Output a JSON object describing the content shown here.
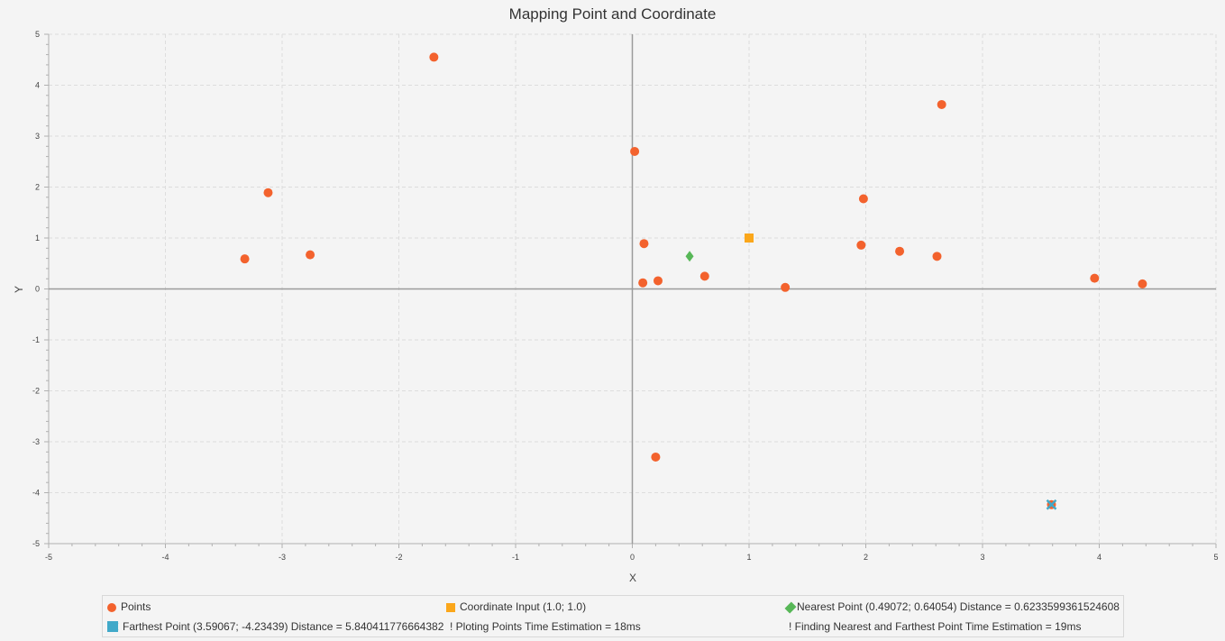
{
  "colors": {
    "points": "#f3622d",
    "coordinate_input": "#fba71b",
    "nearest": "#57b757",
    "farthest": "#41a9c9",
    "axis_zero": "#9a9a9a",
    "grid": "#dddddd"
  },
  "chart_data": {
    "type": "scatter",
    "title": "Mapping Point and Coordinate",
    "xlabel": "X",
    "ylabel": "Y",
    "xlim": [
      -5,
      5
    ],
    "ylim": [
      -5,
      5
    ],
    "x_ticks": [
      "-5",
      "-4",
      "-3",
      "-2",
      "-1",
      "0",
      "1",
      "2",
      "3",
      "4",
      "5"
    ],
    "y_ticks": [
      "-5",
      "-4",
      "-3",
      "-2",
      "-1",
      "0",
      "1",
      "2",
      "3",
      "4",
      "5"
    ],
    "grid": true,
    "legend_position": "bottom",
    "series": [
      {
        "name": "Points",
        "marker": "circle",
        "points": [
          [
            -1.7,
            4.55
          ],
          [
            -3.12,
            1.89
          ],
          [
            -3.32,
            0.59
          ],
          [
            -2.76,
            0.67
          ],
          [
            0.02,
            2.7
          ],
          [
            0.1,
            0.89
          ],
          [
            0.09,
            0.12
          ],
          [
            0.22,
            0.16
          ],
          [
            0.62,
            0.25
          ],
          [
            1.31,
            0.03
          ],
          [
            1.98,
            1.77
          ],
          [
            1.96,
            0.86
          ],
          [
            2.29,
            0.74
          ],
          [
            2.61,
            0.64
          ],
          [
            2.65,
            3.62
          ],
          [
            3.96,
            0.21
          ],
          [
            4.37,
            0.1
          ],
          [
            0.2,
            -3.3
          ],
          [
            3.59067,
            -4.23439
          ]
        ]
      },
      {
        "name": "Coordinate Input (1.0; 1.0)",
        "marker": "square",
        "points": [
          [
            1.0,
            1.0
          ]
        ]
      },
      {
        "name": "Nearest Point (0.49072; 0.64054) Distance = 0.6233599361524608",
        "marker": "diamond",
        "points": [
          [
            0.49072,
            0.64054
          ]
        ]
      },
      {
        "name": "Farthest Point (3.59067; -4.23439) Distance = 5.840411776664382",
        "marker": "x",
        "points": [
          [
            3.59067,
            -4.23439
          ]
        ]
      }
    ],
    "legend_notes": [
      "! Ploting Points Time Estimation = 18ms",
      "! Finding Nearest and Farthest Point Time Estimation = 19ms"
    ]
  }
}
